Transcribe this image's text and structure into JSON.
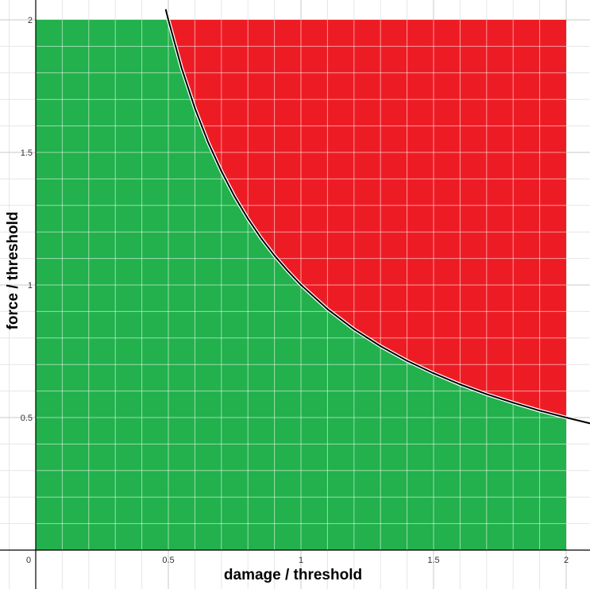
{
  "chart_data": {
    "type": "area",
    "xlabel": "damage / threshold",
    "ylabel": "force / threshold",
    "xlim": [
      -0.12,
      2.09
    ],
    "ylim": [
      -0.02,
      2.07
    ],
    "xticks": [
      0.5,
      1,
      1.5,
      2
    ],
    "yticks": [
      0.5,
      1,
      1.5,
      2
    ],
    "tick_labels": {
      "origin": "0",
      "x": [
        "0.5",
        "1",
        "1.5",
        "2"
      ],
      "y": [
        "0.5",
        "1",
        "1.5",
        "2"
      ]
    },
    "minor_grid_step": 0.1,
    "grid": true,
    "curve": {
      "equation": "force * damage = 1",
      "points": [
        [
          0.49,
          2.04
        ],
        [
          0.5,
          2.0
        ],
        [
          0.55,
          1.818
        ],
        [
          0.6,
          1.667
        ],
        [
          0.65,
          1.538
        ],
        [
          0.7,
          1.429
        ],
        [
          0.75,
          1.333
        ],
        [
          0.8,
          1.25
        ],
        [
          0.85,
          1.176
        ],
        [
          0.9,
          1.111
        ],
        [
          0.95,
          1.053
        ],
        [
          1.0,
          1.0
        ],
        [
          1.1,
          0.909
        ],
        [
          1.2,
          0.833
        ],
        [
          1.3,
          0.769
        ],
        [
          1.4,
          0.714
        ],
        [
          1.5,
          0.667
        ],
        [
          1.6,
          0.625
        ],
        [
          1.7,
          0.588
        ],
        [
          1.8,
          0.556
        ],
        [
          1.9,
          0.526
        ],
        [
          2.0,
          0.5
        ],
        [
          2.09,
          0.478
        ]
      ],
      "color": "#000000"
    },
    "regions": [
      {
        "label": "below curve",
        "color": "#22b14c"
      },
      {
        "label": "above curve",
        "color": "#ed1c24"
      }
    ],
    "fill_extent": {
      "x": [
        0,
        2
      ],
      "y": [
        0,
        2
      ]
    }
  }
}
